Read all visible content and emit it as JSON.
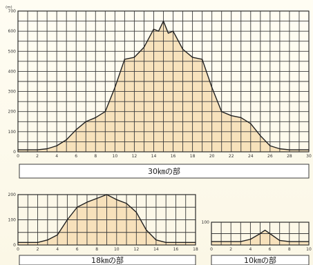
{
  "chart_data": [
    {
      "type": "area",
      "caption": "30㎞の部",
      "unit_label": "(m)",
      "xlim": [
        0,
        30
      ],
      "ylim": [
        0,
        700
      ],
      "x_ticks": [
        "0",
        "2",
        "4",
        "6",
        "8",
        "10",
        "12",
        "14",
        "16",
        "18",
        "20",
        "22",
        "24",
        "26",
        "28",
        "30"
      ],
      "y_ticks": [
        "0",
        "100",
        "200",
        "300",
        "400",
        "500",
        "600",
        "700"
      ],
      "x": [
        0,
        2,
        3,
        4,
        5,
        6,
        7,
        8,
        9,
        10,
        11,
        12,
        13,
        14,
        14.5,
        15,
        15.5,
        16,
        17,
        18,
        19,
        20,
        21,
        22,
        23,
        24,
        25,
        26,
        27,
        28,
        30
      ],
      "y": [
        10,
        10,
        15,
        30,
        60,
        110,
        150,
        170,
        200,
        320,
        460,
        470,
        520,
        610,
        600,
        650,
        590,
        600,
        510,
        470,
        460,
        320,
        200,
        180,
        170,
        140,
        80,
        30,
        15,
        10,
        10
      ]
    },
    {
      "type": "area",
      "caption": "18㎞の部",
      "xlim": [
        0,
        18
      ],
      "ylim": [
        0,
        200
      ],
      "x_ticks": [
        "0",
        "2",
        "4",
        "6",
        "8",
        "10",
        "12",
        "14",
        "16",
        "18"
      ],
      "y_ticks": [
        "0",
        "100",
        "200"
      ],
      "x": [
        0,
        2,
        3,
        4,
        5,
        6,
        7,
        8,
        9,
        10,
        11,
        12,
        13,
        14,
        15,
        16,
        18
      ],
      "y": [
        10,
        10,
        20,
        40,
        100,
        150,
        170,
        185,
        200,
        180,
        165,
        130,
        60,
        20,
        10,
        10,
        10
      ]
    },
    {
      "type": "area",
      "caption": "10㎞の部",
      "xlim": [
        0,
        10
      ],
      "ylim": [
        0,
        100
      ],
      "x_ticks": [
        "0",
        "2",
        "4",
        "6",
        "8",
        "10"
      ],
      "y_ticks": [
        "100"
      ],
      "x": [
        0,
        2,
        3,
        4,
        5,
        5.5,
        6,
        7,
        8,
        10
      ],
      "y": [
        15,
        15,
        15,
        25,
        50,
        65,
        50,
        20,
        15,
        15
      ]
    }
  ]
}
